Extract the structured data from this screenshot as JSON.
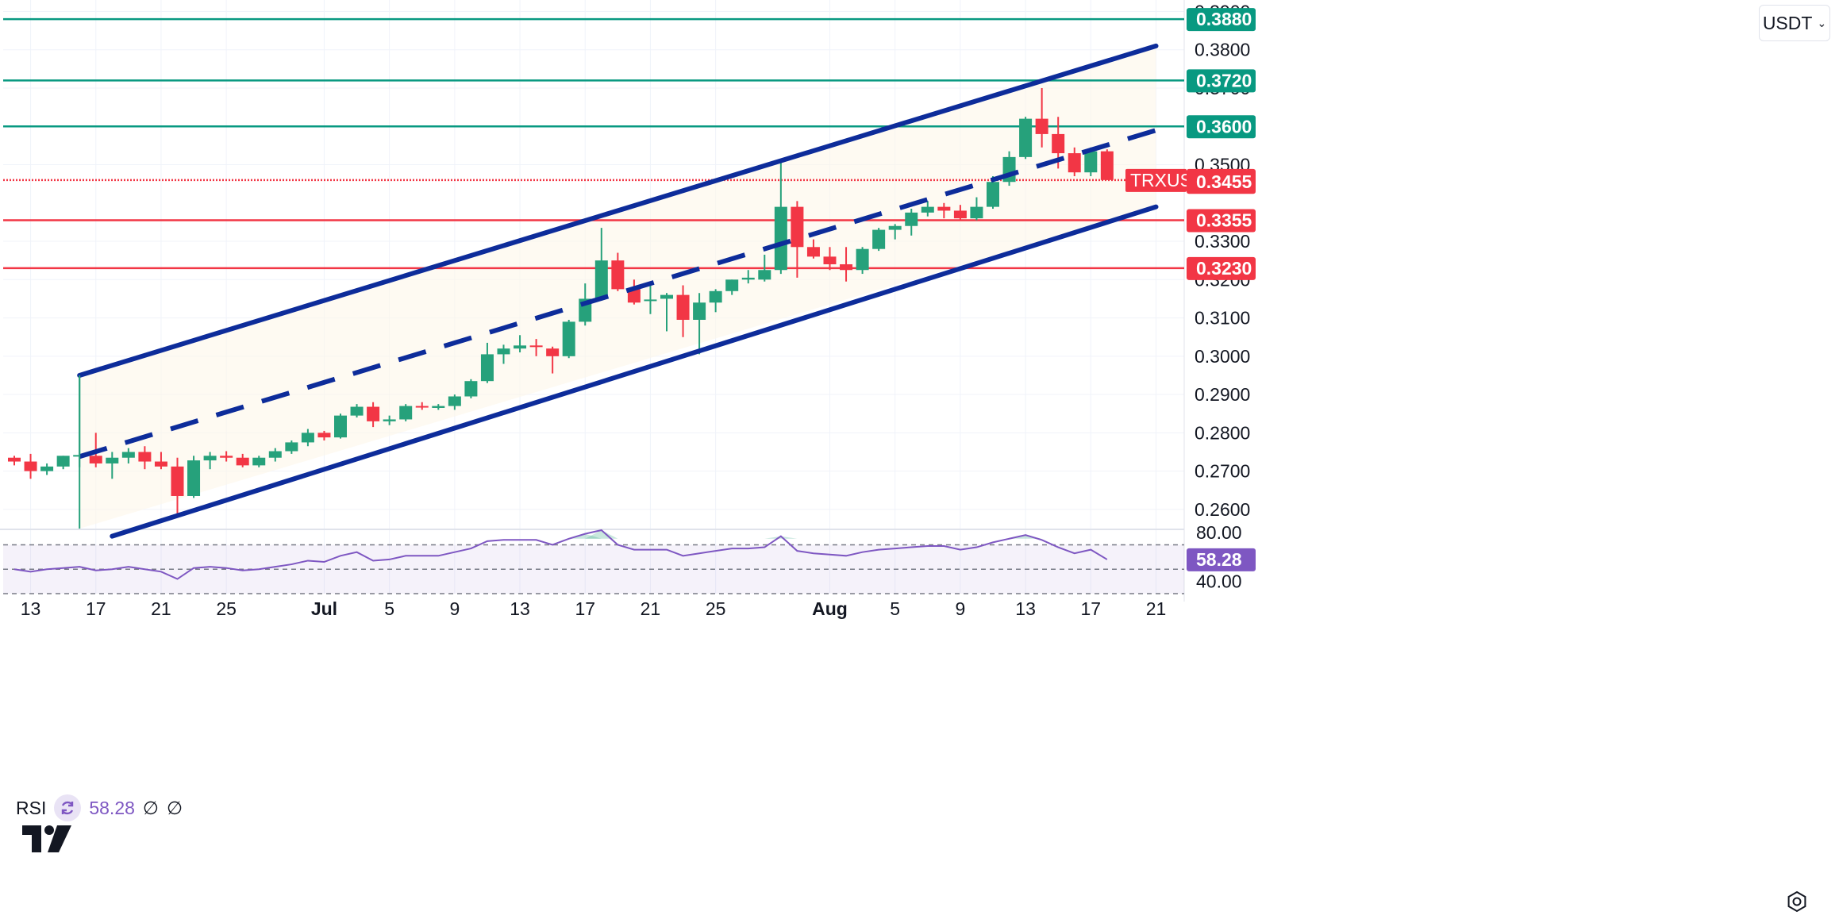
{
  "currency_selector": {
    "label": "USDT"
  },
  "rsi_legend": {
    "name": "RSI",
    "value": "58.28",
    "extra1": "∅",
    "extra2": "∅"
  },
  "colors": {
    "bull": "#26a17b",
    "bear": "#f23645",
    "channel": "#0d2c9a",
    "resistance": "#089981",
    "support": "#f23645",
    "rsi": "#7e57c2"
  },
  "icons": [
    "refresh-icon",
    "tradingview-logo-icon",
    "gear-icon",
    "chevron-down-icon"
  ],
  "chart_data": [
    {
      "type": "candlestick",
      "symbol": "TRXUSDT",
      "x_tick_labels": [
        "13",
        "17",
        "21",
        "25",
        "Jul",
        "5",
        "9",
        "13",
        "17",
        "21",
        "25",
        "Aug",
        "5",
        "9",
        "13",
        "17",
        "21"
      ],
      "y_tick_labels": [
        "0.2600",
        "0.2700",
        "0.2800",
        "0.2900",
        "0.3000",
        "0.3100",
        "0.3200",
        "0.3300",
        "0.3500",
        "0.3700",
        "0.3800",
        "0.3900"
      ],
      "ylim": [
        0.255,
        0.393
      ],
      "candles": [
        {
          "date": "Jun 12",
          "o": 0.2735,
          "h": 0.274,
          "l": 0.2715,
          "c": 0.2725
        },
        {
          "date": "Jun 13",
          "o": 0.2725,
          "h": 0.2745,
          "l": 0.268,
          "c": 0.27
        },
        {
          "date": "Jun 14",
          "o": 0.27,
          "h": 0.272,
          "l": 0.269,
          "c": 0.2712
        },
        {
          "date": "Jun 15",
          "o": 0.2712,
          "h": 0.274,
          "l": 0.2705,
          "c": 0.274
        },
        {
          "date": "Jun 16",
          "o": 0.274,
          "h": 0.295,
          "l": 0.271,
          "c": 0.2742
        },
        {
          "date": "Jun 17",
          "o": 0.274,
          "h": 0.28,
          "l": 0.271,
          "c": 0.272
        },
        {
          "date": "Jun 18",
          "o": 0.272,
          "h": 0.275,
          "l": 0.268,
          "c": 0.2735
        },
        {
          "date": "Jun 19",
          "o": 0.2735,
          "h": 0.276,
          "l": 0.272,
          "c": 0.275
        },
        {
          "date": "Jun 20",
          "o": 0.275,
          "h": 0.2765,
          "l": 0.2705,
          "c": 0.2725
        },
        {
          "date": "Jun 21",
          "o": 0.2725,
          "h": 0.275,
          "l": 0.2705,
          "c": 0.2712
        },
        {
          "date": "Jun 22",
          "o": 0.2712,
          "h": 0.2735,
          "l": 0.2585,
          "c": 0.2635
        },
        {
          "date": "Jun 23",
          "o": 0.2635,
          "h": 0.274,
          "l": 0.263,
          "c": 0.2728
        },
        {
          "date": "Jun 24",
          "o": 0.2728,
          "h": 0.275,
          "l": 0.2705,
          "c": 0.274
        },
        {
          "date": "Jun 25",
          "o": 0.274,
          "h": 0.2752,
          "l": 0.2725,
          "c": 0.2735
        },
        {
          "date": "Jun 26",
          "o": 0.2735,
          "h": 0.2745,
          "l": 0.271,
          "c": 0.2715
        },
        {
          "date": "Jun 27",
          "o": 0.2715,
          "h": 0.274,
          "l": 0.271,
          "c": 0.2735
        },
        {
          "date": "Jun 28",
          "o": 0.2735,
          "h": 0.276,
          "l": 0.2725,
          "c": 0.2752
        },
        {
          "date": "Jun 29",
          "o": 0.2752,
          "h": 0.278,
          "l": 0.2745,
          "c": 0.2775
        },
        {
          "date": "Jun 30",
          "o": 0.2775,
          "h": 0.281,
          "l": 0.2765,
          "c": 0.28
        },
        {
          "date": "Jul 1",
          "o": 0.28,
          "h": 0.2805,
          "l": 0.278,
          "c": 0.2788
        },
        {
          "date": "Jul 2",
          "o": 0.2788,
          "h": 0.285,
          "l": 0.2785,
          "c": 0.2845
        },
        {
          "date": "Jul 3",
          "o": 0.2845,
          "h": 0.2875,
          "l": 0.284,
          "c": 0.2868
        },
        {
          "date": "Jul 4",
          "o": 0.2868,
          "h": 0.288,
          "l": 0.2815,
          "c": 0.283
        },
        {
          "date": "Jul 5",
          "o": 0.283,
          "h": 0.2845,
          "l": 0.282,
          "c": 0.2835
        },
        {
          "date": "Jul 6",
          "o": 0.2835,
          "h": 0.2875,
          "l": 0.283,
          "c": 0.287
        },
        {
          "date": "Jul 7",
          "o": 0.287,
          "h": 0.288,
          "l": 0.286,
          "c": 0.2868
        },
        {
          "date": "Jul 8",
          "o": 0.2865,
          "h": 0.2875,
          "l": 0.286,
          "c": 0.287
        },
        {
          "date": "Jul 9",
          "o": 0.287,
          "h": 0.29,
          "l": 0.286,
          "c": 0.2895
        },
        {
          "date": "Jul 10",
          "o": 0.2895,
          "h": 0.294,
          "l": 0.289,
          "c": 0.2935
        },
        {
          "date": "Jul 11",
          "o": 0.2935,
          "h": 0.3035,
          "l": 0.293,
          "c": 0.3005
        },
        {
          "date": "Jul 12",
          "o": 0.3005,
          "h": 0.303,
          "l": 0.298,
          "c": 0.302
        },
        {
          "date": "Jul 13",
          "o": 0.302,
          "h": 0.3055,
          "l": 0.301,
          "c": 0.3028
        },
        {
          "date": "Jul 14",
          "o": 0.3028,
          "h": 0.3045,
          "l": 0.3,
          "c": 0.3025
        },
        {
          "date": "Jul 15",
          "o": 0.302,
          "h": 0.3025,
          "l": 0.2955,
          "c": 0.3
        },
        {
          "date": "Jul 16",
          "o": 0.3,
          "h": 0.3095,
          "l": 0.2995,
          "c": 0.309
        },
        {
          "date": "Jul 17",
          "o": 0.309,
          "h": 0.319,
          "l": 0.308,
          "c": 0.315
        },
        {
          "date": "Jul 18",
          "o": 0.315,
          "h": 0.3335,
          "l": 0.3145,
          "c": 0.325
        },
        {
          "date": "Jul 19",
          "o": 0.325,
          "h": 0.327,
          "l": 0.317,
          "c": 0.3175
        },
        {
          "date": "Jul 20",
          "o": 0.3175,
          "h": 0.32,
          "l": 0.3135,
          "c": 0.314
        },
        {
          "date": "Jul 21",
          "o": 0.3145,
          "h": 0.319,
          "l": 0.311,
          "c": 0.3148
        },
        {
          "date": "Jul 22",
          "o": 0.315,
          "h": 0.3165,
          "l": 0.3065,
          "c": 0.316
        },
        {
          "date": "Jul 23",
          "o": 0.316,
          "h": 0.3185,
          "l": 0.305,
          "c": 0.3095
        },
        {
          "date": "Jul 24",
          "o": 0.3095,
          "h": 0.3165,
          "l": 0.3005,
          "c": 0.314
        },
        {
          "date": "Jul 25",
          "o": 0.314,
          "h": 0.3175,
          "l": 0.3115,
          "c": 0.317
        },
        {
          "date": "Jul 26",
          "o": 0.317,
          "h": 0.32,
          "l": 0.316,
          "c": 0.32
        },
        {
          "date": "Jul 27",
          "o": 0.32,
          "h": 0.3225,
          "l": 0.319,
          "c": 0.3205
        },
        {
          "date": "Jul 28",
          "o": 0.32,
          "h": 0.3265,
          "l": 0.3195,
          "c": 0.3225
        },
        {
          "date": "Jul 29",
          "o": 0.3225,
          "h": 0.351,
          "l": 0.3215,
          "c": 0.339
        },
        {
          "date": "Jul 30",
          "o": 0.339,
          "h": 0.3405,
          "l": 0.3205,
          "c": 0.3285
        },
        {
          "date": "Jul 31",
          "o": 0.3285,
          "h": 0.3305,
          "l": 0.3255,
          "c": 0.326
        },
        {
          "date": "Aug 1",
          "o": 0.326,
          "h": 0.3285,
          "l": 0.3225,
          "c": 0.324
        },
        {
          "date": "Aug 2",
          "o": 0.324,
          "h": 0.3285,
          "l": 0.3195,
          "c": 0.3225
        },
        {
          "date": "Aug 3",
          "o": 0.3225,
          "h": 0.3285,
          "l": 0.3215,
          "c": 0.328
        },
        {
          "date": "Aug 4",
          "o": 0.328,
          "h": 0.3335,
          "l": 0.3275,
          "c": 0.333
        },
        {
          "date": "Aug 5",
          "o": 0.333,
          "h": 0.3345,
          "l": 0.3305,
          "c": 0.334
        },
        {
          "date": "Aug 6",
          "o": 0.334,
          "h": 0.3385,
          "l": 0.3315,
          "c": 0.3375
        },
        {
          "date": "Aug 7",
          "o": 0.3375,
          "h": 0.3405,
          "l": 0.3365,
          "c": 0.339
        },
        {
          "date": "Aug 8",
          "o": 0.339,
          "h": 0.34,
          "l": 0.336,
          "c": 0.338
        },
        {
          "date": "Aug 9",
          "o": 0.338,
          "h": 0.3395,
          "l": 0.3355,
          "c": 0.336
        },
        {
          "date": "Aug 10",
          "o": 0.336,
          "h": 0.3415,
          "l": 0.3355,
          "c": 0.339
        },
        {
          "date": "Aug 11",
          "o": 0.339,
          "h": 0.347,
          "l": 0.3385,
          "c": 0.3455
        },
        {
          "date": "Aug 12",
          "o": 0.3455,
          "h": 0.3535,
          "l": 0.3445,
          "c": 0.352
        },
        {
          "date": "Aug 13",
          "o": 0.352,
          "h": 0.3625,
          "l": 0.3515,
          "c": 0.362
        },
        {
          "date": "Aug 14",
          "o": 0.362,
          "h": 0.37,
          "l": 0.3545,
          "c": 0.358
        },
        {
          "date": "Aug 15",
          "o": 0.358,
          "h": 0.3625,
          "l": 0.349,
          "c": 0.353
        },
        {
          "date": "Aug 16",
          "o": 0.353,
          "h": 0.3545,
          "l": 0.347,
          "c": 0.348
        },
        {
          "date": "Aug 17",
          "o": 0.348,
          "h": 0.3545,
          "l": 0.347,
          "c": 0.3535
        },
        {
          "date": "Aug 18",
          "o": 0.3535,
          "h": 0.354,
          "l": 0.346,
          "c": 0.346
        }
      ],
      "horizontal_levels": [
        {
          "label": "0.3880",
          "value": 0.388,
          "kind": "resistance"
        },
        {
          "label": "0.3720",
          "value": 0.372,
          "kind": "resistance"
        },
        {
          "label": "0.3600",
          "value": 0.36,
          "kind": "resistance"
        },
        {
          "label": "0.3460",
          "value": 0.346,
          "kind": "last-price"
        },
        {
          "label": "0.3455",
          "value": 0.3455,
          "kind": "support-tag"
        },
        {
          "label": "0.3355",
          "value": 0.3355,
          "kind": "support"
        },
        {
          "label": "0.3230",
          "value": 0.323,
          "kind": "support"
        }
      ],
      "last_price_label": "TRXUSDT",
      "channel": {
        "upper": [
          {
            "date": "Jun 16",
            "value": 0.295
          },
          {
            "date": "Aug 21",
            "value": 0.381
          }
        ],
        "middle": [
          {
            "date": "Jun 16",
            "value": 0.2738
          },
          {
            "date": "Aug 21",
            "value": 0.359
          }
        ],
        "lower": [
          {
            "date": "Jun 18",
            "value": 0.253
          },
          {
            "date": "Aug 21",
            "value": 0.339
          }
        ]
      }
    },
    {
      "type": "line",
      "name": "RSI",
      "y_tick_labels": [
        "80.00",
        "40.00"
      ],
      "last_value_label": "58.28",
      "ylim": [
        30,
        82
      ],
      "levels": [
        70,
        50,
        30
      ],
      "values": [
        {
          "date": "Jun 12",
          "v": 50
        },
        {
          "date": "Jun 13",
          "v": 48
        },
        {
          "date": "Jun 14",
          "v": 50
        },
        {
          "date": "Jun 15",
          "v": 51
        },
        {
          "date": "Jun 16",
          "v": 52
        },
        {
          "date": "Jun 17",
          "v": 49
        },
        {
          "date": "Jun 18",
          "v": 50
        },
        {
          "date": "Jun 19",
          "v": 52
        },
        {
          "date": "Jun 20",
          "v": 50
        },
        {
          "date": "Jun 21",
          "v": 48
        },
        {
          "date": "Jun 22",
          "v": 42
        },
        {
          "date": "Jun 23",
          "v": 51
        },
        {
          "date": "Jun 24",
          "v": 52
        },
        {
          "date": "Jun 25",
          "v": 51
        },
        {
          "date": "Jun 26",
          "v": 49
        },
        {
          "date": "Jun 27",
          "v": 50
        },
        {
          "date": "Jun 28",
          "v": 52
        },
        {
          "date": "Jun 29",
          "v": 54
        },
        {
          "date": "Jun 30",
          "v": 57
        },
        {
          "date": "Jul 1",
          "v": 56
        },
        {
          "date": "Jul 2",
          "v": 61
        },
        {
          "date": "Jul 3",
          "v": 64
        },
        {
          "date": "Jul 4",
          "v": 57
        },
        {
          "date": "Jul 5",
          "v": 58
        },
        {
          "date": "Jul 6",
          "v": 61
        },
        {
          "date": "Jul 7",
          "v": 61
        },
        {
          "date": "Jul 8",
          "v": 61
        },
        {
          "date": "Jul 9",
          "v": 64
        },
        {
          "date": "Jul 10",
          "v": 67
        },
        {
          "date": "Jul 11",
          "v": 73
        },
        {
          "date": "Jul 12",
          "v": 74
        },
        {
          "date": "Jul 13",
          "v": 74
        },
        {
          "date": "Jul 14",
          "v": 74
        },
        {
          "date": "Jul 15",
          "v": 70
        },
        {
          "date": "Jul 16",
          "v": 75
        },
        {
          "date": "Jul 17",
          "v": 79
        },
        {
          "date": "Jul 18",
          "v": 82
        },
        {
          "date": "Jul 19",
          "v": 70
        },
        {
          "date": "Jul 20",
          "v": 66
        },
        {
          "date": "Jul 21",
          "v": 66
        },
        {
          "date": "Jul 22",
          "v": 66
        },
        {
          "date": "Jul 23",
          "v": 61
        },
        {
          "date": "Jul 24",
          "v": 63
        },
        {
          "date": "Jul 25",
          "v": 65
        },
        {
          "date": "Jul 26",
          "v": 67
        },
        {
          "date": "Jul 27",
          "v": 67
        },
        {
          "date": "Jul 28",
          "v": 68
        },
        {
          "date": "Jul 29",
          "v": 77
        },
        {
          "date": "Jul 30",
          "v": 65
        },
        {
          "date": "Jul 31",
          "v": 63
        },
        {
          "date": "Aug 1",
          "v": 62
        },
        {
          "date": "Aug 2",
          "v": 61
        },
        {
          "date": "Aug 3",
          "v": 64
        },
        {
          "date": "Aug 4",
          "v": 66
        },
        {
          "date": "Aug 5",
          "v": 67
        },
        {
          "date": "Aug 6",
          "v": 68
        },
        {
          "date": "Aug 7",
          "v": 69
        },
        {
          "date": "Aug 8",
          "v": 69
        },
        {
          "date": "Aug 9",
          "v": 66
        },
        {
          "date": "Aug 10",
          "v": 68
        },
        {
          "date": "Aug 11",
          "v": 72
        },
        {
          "date": "Aug 12",
          "v": 75
        },
        {
          "date": "Aug 13",
          "v": 78
        },
        {
          "date": "Aug 14",
          "v": 74
        },
        {
          "date": "Aug 15",
          "v": 68
        },
        {
          "date": "Aug 16",
          "v": 63
        },
        {
          "date": "Aug 17",
          "v": 66
        },
        {
          "date": "Aug 18",
          "v": 58
        }
      ]
    }
  ]
}
